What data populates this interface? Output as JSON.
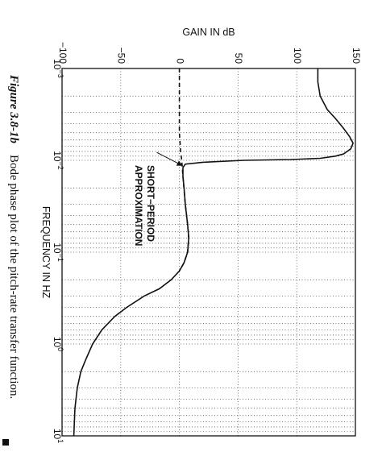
{
  "figure": {
    "caption_label": "Figure 3.8-1b",
    "caption_text": "Bode phase plot of the pitch-rate transfer function."
  },
  "chart_data": {
    "type": "line",
    "ylabel": "GAIN IN dB",
    "xlabel": "FREQUENCY IN HZ",
    "x_scale": "log",
    "xlim": [
      0.001,
      10
    ],
    "ylim": [
      -100,
      150
    ],
    "y_ticks": [
      -100,
      -50,
      0,
      50,
      100,
      150
    ],
    "y_tick_labels": [
      "−100",
      "−50",
      "0",
      "50",
      "100",
      "150"
    ],
    "x_ticks": [
      0.001,
      0.01,
      0.1,
      1,
      10
    ],
    "x_tick_labels": [
      {
        "base": "10",
        "exp": "−3"
      },
      {
        "base": "10",
        "exp": "−2"
      },
      {
        "base": "10",
        "exp": "−1"
      },
      {
        "base": "10",
        "exp": "0"
      },
      {
        "base": "10",
        "exp": "1"
      }
    ],
    "grid": true,
    "annotation": {
      "lines": [
        "SHORT−PERIOD",
        "APPROXIMATION"
      ],
      "points_to": {
        "x": 0.011,
        "y": 0
      }
    },
    "series": [
      {
        "style": "solid",
        "points": [
          [
            0.001,
            118
          ],
          [
            0.0014,
            118
          ],
          [
            0.002,
            120
          ],
          [
            0.0028,
            126
          ],
          [
            0.0035,
            133
          ],
          [
            0.0045,
            140
          ],
          [
            0.0055,
            145
          ],
          [
            0.0065,
            148
          ],
          [
            0.0075,
            146
          ],
          [
            0.0085,
            140
          ],
          [
            0.009,
            133
          ],
          [
            0.0095,
            120
          ],
          [
            0.0098,
            95
          ],
          [
            0.01,
            55
          ],
          [
            0.0105,
            20
          ],
          [
            0.011,
            5
          ],
          [
            0.012,
            3
          ],
          [
            0.015,
            3
          ],
          [
            0.02,
            4
          ],
          [
            0.03,
            5
          ],
          [
            0.05,
            7
          ],
          [
            0.07,
            8
          ],
          [
            0.1,
            7
          ],
          [
            0.13,
            4
          ],
          [
            0.16,
            0
          ],
          [
            0.2,
            -7
          ],
          [
            0.25,
            -17
          ],
          [
            0.3,
            -30
          ],
          [
            0.4,
            -45
          ],
          [
            0.5,
            -55
          ],
          [
            0.7,
            -66
          ],
          [
            1,
            -74
          ],
          [
            1.5,
            -80
          ],
          [
            2,
            -84
          ],
          [
            3,
            -87
          ],
          [
            5,
            -89
          ],
          [
            7,
            -89.5
          ],
          [
            10,
            -90
          ]
        ]
      },
      {
        "style": "dashed",
        "points": [
          [
            0.001,
            0
          ],
          [
            0.002,
            0
          ],
          [
            0.005,
            0
          ],
          [
            0.008,
            1
          ],
          [
            0.01,
            2
          ],
          [
            0.015,
            3
          ],
          [
            0.03,
            5
          ],
          [
            0.05,
            7
          ],
          [
            0.07,
            8
          ],
          [
            0.1,
            7
          ],
          [
            0.13,
            4
          ],
          [
            0.16,
            0
          ]
        ]
      }
    ]
  }
}
